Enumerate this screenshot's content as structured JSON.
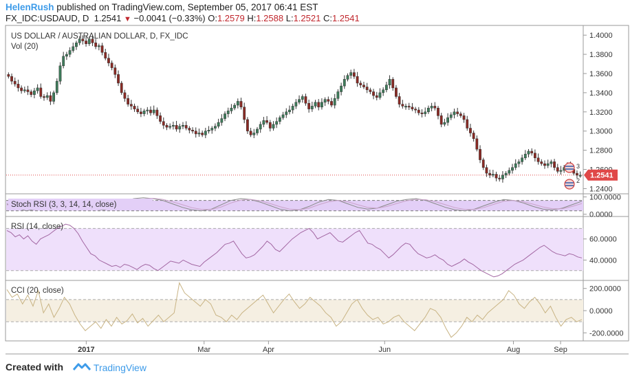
{
  "header": {
    "author": "HelenRush",
    "published_text": " published on TradingView.com, September 05, 2017 06:41 EST",
    "symbol": "FX_IDC:USDAUD, D",
    "last": "1.2541",
    "direction_icon": "down-triangle",
    "change": "−0.0041 (−0.33%)",
    "o_label": "O:",
    "o_value": "1.2579",
    "h_label": "H:",
    "h_value": "1.2588",
    "l_label": "L:",
    "l_value": "1.2521",
    "c_label": "C:",
    "c_value": "1.2541"
  },
  "footer": {
    "created_with": "Created with",
    "brand": "TradingView"
  },
  "colors": {
    "up": "#3e7d5b",
    "down": "#8b2a24",
    "accent": "#3d9be9",
    "price_tag": "#e04848",
    "stoch_band": "#e3cff7",
    "rsi_band": "#efe0fb",
    "cci_band": "#f5efe2"
  },
  "chart_data": [
    {
      "type": "candlestick",
      "title": "US DOLLAR / AUSTRALIAN DOLLAR, D, FX_IDC",
      "indicator_label": "Vol (20)",
      "ylim": [
        1.236,
        1.408
      ],
      "y_ticks": [
        "1.4000",
        "1.3800",
        "1.3600",
        "1.3400",
        "1.3200",
        "1.3000",
        "1.2800",
        "1.2600",
        "1.2400"
      ],
      "last_price_label": "1.2541",
      "last_price": 1.2541,
      "event_markers": [
        "3",
        "2"
      ],
      "x_tick_labels": [
        "2017",
        "Mar",
        "Apr",
        "Jun",
        "Aug",
        "Sep"
      ],
      "close_series": [
        1.357,
        1.352,
        1.349,
        1.345,
        1.342,
        1.343,
        1.341,
        1.338,
        1.342,
        1.345,
        1.336,
        1.335,
        1.337,
        1.331,
        1.34,
        1.352,
        1.368,
        1.378,
        1.38,
        1.384,
        1.388,
        1.392,
        1.396,
        1.394,
        1.391,
        1.396,
        1.392,
        1.388,
        1.389,
        1.382,
        1.376,
        1.371,
        1.366,
        1.359,
        1.35,
        1.34,
        1.334,
        1.328,
        1.326,
        1.323,
        1.32,
        1.318,
        1.321,
        1.322,
        1.319,
        1.322,
        1.316,
        1.31,
        1.306,
        1.304,
        1.305,
        1.306,
        1.302,
        1.305,
        1.306,
        1.303,
        1.301,
        1.3,
        1.297,
        1.298,
        1.296,
        1.3,
        1.301,
        1.303,
        1.305,
        1.309,
        1.313,
        1.318,
        1.321,
        1.324,
        1.327,
        1.331,
        1.325,
        1.312,
        1.3,
        1.296,
        1.298,
        1.302,
        1.307,
        1.311,
        1.309,
        1.303,
        1.307,
        1.31,
        1.314,
        1.317,
        1.32,
        1.322,
        1.326,
        1.33,
        1.333,
        1.336,
        1.329,
        1.323,
        1.326,
        1.33,
        1.325,
        1.33,
        1.333,
        1.331,
        1.327,
        1.334,
        1.341,
        1.347,
        1.354,
        1.358,
        1.361,
        1.357,
        1.35,
        1.348,
        1.346,
        1.343,
        1.341,
        1.337,
        1.335,
        1.34,
        1.343,
        1.348,
        1.354,
        1.345,
        1.336,
        1.328,
        1.326,
        1.326,
        1.325,
        1.323,
        1.322,
        1.319,
        1.318,
        1.32,
        1.324,
        1.326,
        1.324,
        1.316,
        1.307,
        1.309,
        1.314,
        1.317,
        1.32,
        1.318,
        1.316,
        1.312,
        1.303,
        1.298,
        1.292,
        1.281,
        1.27,
        1.262,
        1.256,
        1.254,
        1.255,
        1.251,
        1.25,
        1.254,
        1.256,
        1.259,
        1.262,
        1.266,
        1.268,
        1.272,
        1.276,
        1.279,
        1.277,
        1.272,
        1.268,
        1.266,
        1.264,
        1.266,
        1.268,
        1.262,
        1.258,
        1.259,
        1.262,
        1.264,
        1.26,
        1.256,
        1.254,
        1.254
      ]
    },
    {
      "type": "line",
      "title": "Stoch RSI (3, 3, 14, 14, close)",
      "ylim": [
        -5,
        110
      ],
      "y_ticks": [
        "100.0000",
        "0.0000"
      ],
      "band": [
        20,
        80
      ],
      "series": [
        {
          "values": [
            60,
            35,
            20,
            30,
            55,
            75,
            85,
            70,
            45,
            30,
            25,
            40,
            70,
            90,
            95,
            90,
            80,
            60,
            40,
            25,
            20,
            30,
            55,
            80,
            90,
            85,
            70,
            50,
            30,
            20,
            25,
            45,
            70,
            85,
            80,
            60,
            40,
            30,
            35,
            55,
            75,
            85,
            90,
            80,
            60,
            40,
            25,
            20,
            30,
            50,
            70,
            85,
            80,
            65,
            45,
            30,
            25,
            35,
            55,
            75
          ]
        },
        {
          "values": [
            55,
            45,
            30,
            28,
            40,
            60,
            78,
            76,
            58,
            40,
            30,
            32,
            52,
            75,
            88,
            92,
            86,
            72,
            55,
            38,
            28,
            28,
            42,
            65,
            82,
            86,
            78,
            62,
            44,
            30,
            26,
            35,
            55,
            72,
            80,
            72,
            55,
            40,
            35,
            45,
            62,
            78,
            86,
            84,
            72,
            55,
            38,
            28,
            28,
            40,
            58,
            75,
            80,
            72,
            58,
            42,
            32,
            32,
            45,
            62
          ]
        }
      ]
    },
    {
      "type": "line",
      "title": "RSI (14, close)",
      "ylim": [
        22,
        80
      ],
      "y_ticks": [
        "60.0000",
        "40.0000"
      ],
      "band": [
        30,
        70
      ],
      "series": [
        {
          "values": [
            68,
            66,
            62,
            64,
            60,
            63,
            58,
            55,
            60,
            62,
            64,
            67,
            70,
            72,
            74,
            73,
            70,
            65,
            58,
            52,
            46,
            44,
            40,
            38,
            36,
            34,
            35,
            33,
            36,
            35,
            33,
            31,
            34,
            36,
            35,
            32,
            30,
            33,
            36,
            39,
            38,
            37,
            40,
            38,
            36,
            35,
            34,
            38,
            41,
            44,
            47,
            51,
            55,
            56,
            58,
            52,
            46,
            42,
            43,
            45,
            49,
            53,
            58,
            55,
            50,
            48,
            52,
            56,
            60,
            63,
            66,
            68,
            70,
            66,
            60,
            62,
            64,
            66,
            62,
            58,
            57,
            60,
            63,
            66,
            68,
            62,
            56,
            55,
            52,
            50,
            46,
            42,
            45,
            49,
            53,
            56,
            55,
            50,
            46,
            44,
            42,
            43,
            45,
            42,
            40,
            36,
            34,
            36,
            38,
            41,
            38,
            36,
            33,
            30,
            28,
            26,
            24,
            25,
            27,
            30,
            33,
            36,
            38,
            40,
            43,
            46,
            49,
            52,
            54,
            51,
            48,
            46,
            45,
            44,
            46,
            45,
            43,
            42
          ]
        }
      ]
    },
    {
      "type": "line",
      "title": "CCI (20, close)",
      "ylim": [
        -260,
        260
      ],
      "y_ticks": [
        "200.0000",
        "0.0000",
        "-200.0000"
      ],
      "band": [
        -100,
        100
      ],
      "series": [
        {
          "values": [
            190,
            120,
            150,
            60,
            140,
            40,
            180,
            -20,
            60,
            -60,
            20,
            120,
            60,
            -40,
            -120,
            -180,
            -140,
            -100,
            -160,
            -80,
            -140,
            -60,
            -120,
            -90,
            -30,
            -110,
            -70,
            -140,
            -90,
            -40,
            -100,
            -60,
            -20,
            250,
            160,
            120,
            80,
            40,
            100,
            60,
            -40,
            -60,
            -100,
            -40,
            -80,
            -20,
            20,
            60,
            100,
            140,
            60,
            -20,
            40,
            100,
            150,
            80,
            20,
            60,
            120,
            80,
            40,
            -20,
            -60,
            -140,
            -100,
            -20,
            60,
            100,
            20,
            -40,
            -80,
            -60,
            -120,
            -100,
            -60,
            -40,
            -100,
            -140,
            -180,
            -120,
            -60,
            20,
            0,
            -60,
            -160,
            -240,
            -200,
            -140,
            -60,
            -100,
            -40,
            -80,
            -20,
            20,
            60,
            100,
            180,
            140,
            60,
            20,
            80,
            120,
            60,
            -20,
            40,
            -60,
            -140,
            -80,
            -60,
            -100,
            -80
          ]
        }
      ]
    }
  ]
}
